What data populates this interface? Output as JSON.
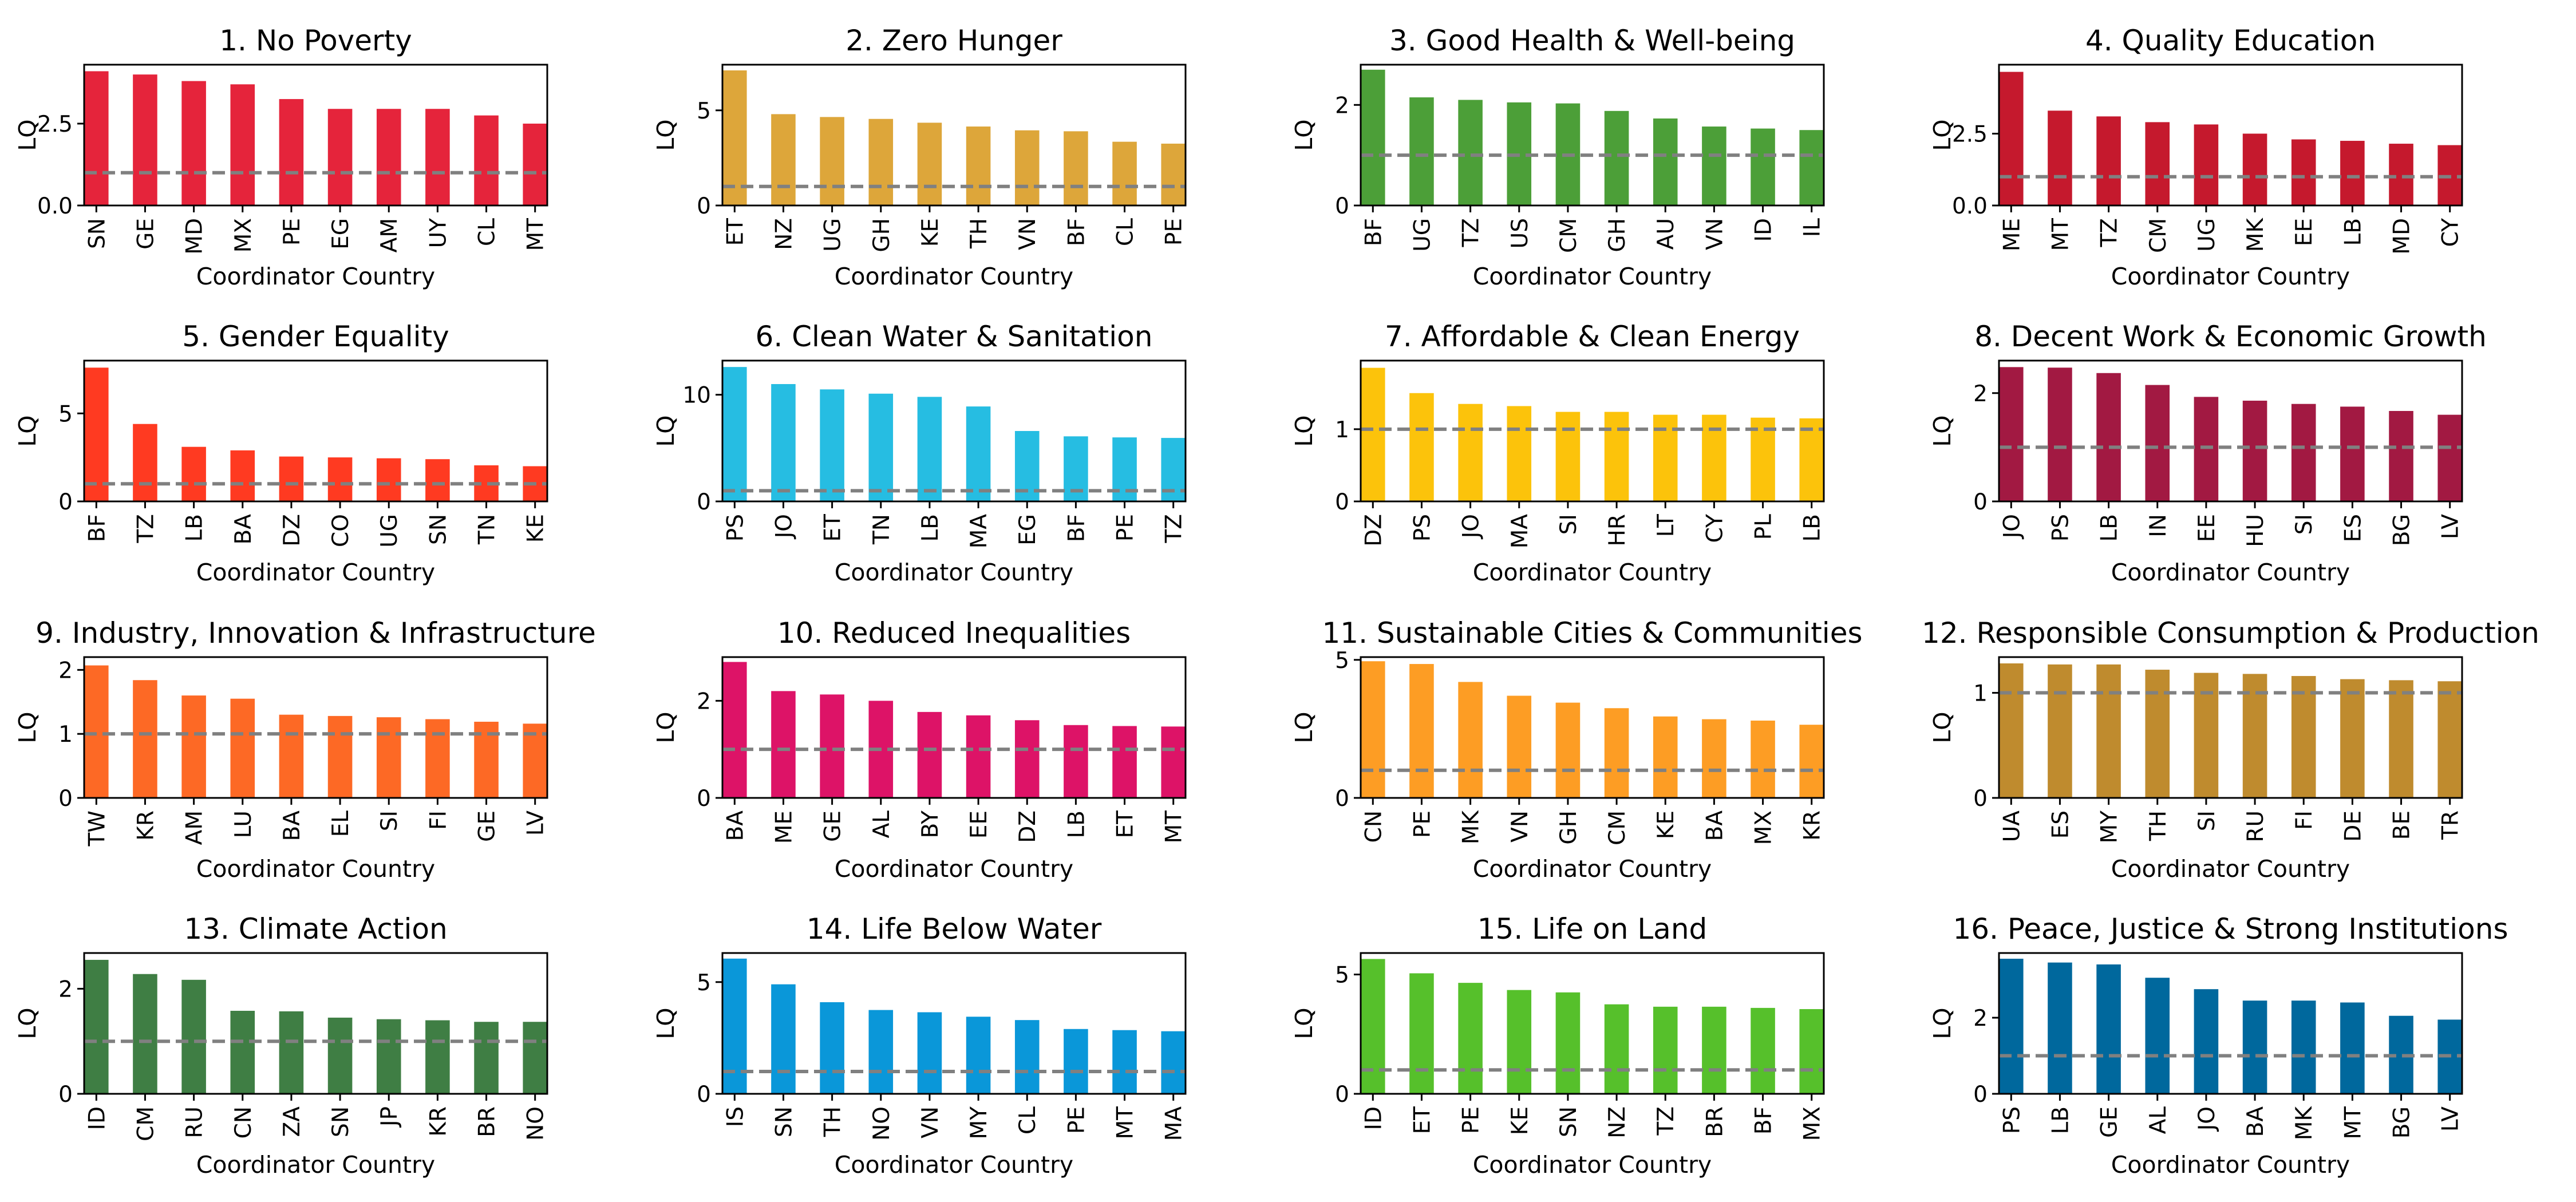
{
  "chart_data": [
    {
      "type": "bar",
      "title": "1. No Poverty",
      "color": "#E5243B",
      "xlabel": "Coordinator Country",
      "ylabel": "LQ",
      "ylim": [
        0,
        4.3
      ],
      "yticks": [
        0,
        2.5
      ],
      "ytick_labels": [
        "0.0",
        "2.5"
      ],
      "reference_line": 1,
      "categories": [
        "SN",
        "GE",
        "MD",
        "MX",
        "PE",
        "EG",
        "AM",
        "UY",
        "CL",
        "MT"
      ],
      "values": [
        4.1,
        4.0,
        3.8,
        3.7,
        3.25,
        2.95,
        2.95,
        2.95,
        2.75,
        2.5
      ]
    },
    {
      "type": "bar",
      "title": "2. Zero Hunger",
      "color": "#DDA63A",
      "xlabel": "Coordinator Country",
      "ylabel": "LQ",
      "ylim": [
        0,
        7.4
      ],
      "yticks": [
        0,
        5
      ],
      "ytick_labels": [
        "0",
        "5"
      ],
      "reference_line": 1,
      "categories": [
        "ET",
        "NZ",
        "UG",
        "GH",
        "KE",
        "TH",
        "VN",
        "BF",
        "CL",
        "PE"
      ],
      "values": [
        7.1,
        4.8,
        4.65,
        4.55,
        4.35,
        4.15,
        3.95,
        3.9,
        3.35,
        3.25
      ]
    },
    {
      "type": "bar",
      "title": "3. Good Health & Well-being",
      "color": "#4C9F38",
      "xlabel": "Coordinator Country",
      "ylabel": "LQ",
      "ylim": [
        0,
        2.8
      ],
      "yticks": [
        0,
        2
      ],
      "ytick_labels": [
        "0",
        "2"
      ],
      "reference_line": 1,
      "categories": [
        "BF",
        "UG",
        "TZ",
        "US",
        "CM",
        "GH",
        "AU",
        "VN",
        "ID",
        "IL"
      ],
      "values": [
        2.7,
        2.15,
        2.1,
        2.05,
        2.03,
        1.88,
        1.73,
        1.57,
        1.53,
        1.5
      ]
    },
    {
      "type": "bar",
      "title": "4. Quality Education",
      "color": "#C5192D",
      "xlabel": "Coordinator Country",
      "ylabel": "LQ",
      "ylim": [
        0,
        4.9
      ],
      "yticks": [
        0,
        2.5
      ],
      "ytick_labels": [
        "0.0",
        "2.5"
      ],
      "reference_line": 1,
      "categories": [
        "ME",
        "MT",
        "TZ",
        "CM",
        "UG",
        "MK",
        "EE",
        "LB",
        "MD",
        "CY"
      ],
      "values": [
        4.65,
        3.3,
        3.1,
        2.9,
        2.82,
        2.5,
        2.3,
        2.25,
        2.15,
        2.1
      ]
    },
    {
      "type": "bar",
      "title": "5. Gender Equality",
      "color": "#FF3A21",
      "xlabel": "Coordinator Country",
      "ylabel": "LQ",
      "ylim": [
        0,
        8
      ],
      "yticks": [
        0,
        5
      ],
      "ytick_labels": [
        "0",
        "5"
      ],
      "reference_line": 1,
      "categories": [
        "BF",
        "TZ",
        "LB",
        "BA",
        "DZ",
        "CO",
        "UG",
        "SN",
        "TN",
        "KE"
      ],
      "values": [
        7.6,
        4.4,
        3.1,
        2.9,
        2.55,
        2.5,
        2.45,
        2.4,
        2.05,
        2.0
      ]
    },
    {
      "type": "bar",
      "title": "6. Clean Water & Sanitation",
      "color": "#26BDE2",
      "xlabel": "Coordinator Country",
      "ylabel": "LQ",
      "ylim": [
        0,
        13.2
      ],
      "yticks": [
        0,
        10
      ],
      "ytick_labels": [
        "0",
        "10"
      ],
      "reference_line": 1,
      "categories": [
        "PS",
        "JO",
        "ET",
        "TN",
        "LB",
        "MA",
        "EG",
        "BF",
        "PE",
        "TZ"
      ],
      "values": [
        12.6,
        11.0,
        10.5,
        10.1,
        9.8,
        8.9,
        6.6,
        6.1,
        6.0,
        5.95
      ]
    },
    {
      "type": "bar",
      "title": "7. Affordable & Clean Energy",
      "color": "#FCC30B",
      "xlabel": "Coordinator Country",
      "ylabel": "LQ",
      "ylim": [
        0,
        1.95
      ],
      "yticks": [
        0,
        1
      ],
      "ytick_labels": [
        "0",
        "1"
      ],
      "reference_line": 1,
      "categories": [
        "DZ",
        "PS",
        "JO",
        "MA",
        "SI",
        "HR",
        "LT",
        "CY",
        "PL",
        "LB"
      ],
      "values": [
        1.85,
        1.5,
        1.35,
        1.32,
        1.24,
        1.24,
        1.2,
        1.2,
        1.16,
        1.15
      ]
    },
    {
      "type": "bar",
      "title": "8. Decent Work & Economic Growth",
      "color": "#A21942",
      "xlabel": "Coordinator Country",
      "ylabel": "LQ",
      "ylim": [
        0,
        2.6
      ],
      "yticks": [
        0,
        2
      ],
      "ytick_labels": [
        "0",
        "2"
      ],
      "reference_line": 1,
      "categories": [
        "JO",
        "PS",
        "LB",
        "IN",
        "EE",
        "HU",
        "SI",
        "ES",
        "BG",
        "LV"
      ],
      "values": [
        2.48,
        2.47,
        2.37,
        2.15,
        1.93,
        1.86,
        1.8,
        1.75,
        1.67,
        1.6
      ]
    },
    {
      "type": "bar",
      "title": "9. Industry, Innovation & Infrastructure",
      "color": "#FD6925",
      "xlabel": "Coordinator Country",
      "ylabel": "LQ",
      "ylim": [
        0,
        2.2
      ],
      "yticks": [
        0,
        1,
        2
      ],
      "ytick_labels": [
        "0",
        "1",
        "2"
      ],
      "reference_line": 1,
      "categories": [
        "TW",
        "KR",
        "AM",
        "LU",
        "BA",
        "EL",
        "SI",
        "FI",
        "GE",
        "LV"
      ],
      "values": [
        2.07,
        1.84,
        1.6,
        1.55,
        1.3,
        1.28,
        1.26,
        1.23,
        1.19,
        1.16
      ]
    },
    {
      "type": "bar",
      "title": "10.  Reduced Inequalities",
      "color": "#DD1367",
      "xlabel": "Coordinator Country",
      "ylabel": "LQ",
      "ylim": [
        0,
        2.9
      ],
      "yticks": [
        0,
        2
      ],
      "ytick_labels": [
        "0",
        "2"
      ],
      "reference_line": 1,
      "categories": [
        "BA",
        "ME",
        "GE",
        "AL",
        "BY",
        "EE",
        "DZ",
        "LB",
        "ET",
        "MT"
      ],
      "values": [
        2.8,
        2.2,
        2.13,
        2.0,
        1.77,
        1.7,
        1.6,
        1.5,
        1.48,
        1.47
      ]
    },
    {
      "type": "bar",
      "title": "11.  Sustainable Cities & Communities",
      "color": "#FD9D24",
      "xlabel": "Coordinator Country",
      "ylabel": "LQ",
      "ylim": [
        0,
        5.1
      ],
      "yticks": [
        0,
        5
      ],
      "ytick_labels": [
        "0",
        "5"
      ],
      "reference_line": 1,
      "categories": [
        "CN",
        "PE",
        "MK",
        "VN",
        "GH",
        "CM",
        "KE",
        "BA",
        "MX",
        "KR"
      ],
      "values": [
        4.95,
        4.85,
        4.2,
        3.7,
        3.45,
        3.25,
        2.95,
        2.85,
        2.8,
        2.65
      ]
    },
    {
      "type": "bar",
      "title": "12.  Responsible Consumption & Production",
      "color": "#BF8B2E",
      "xlabel": "Coordinator Country",
      "ylabel": "LQ",
      "ylim": [
        0,
        1.34
      ],
      "yticks": [
        0,
        1
      ],
      "ytick_labels": [
        "0",
        "1"
      ],
      "reference_line": 1,
      "categories": [
        "UA",
        "ES",
        "MY",
        "TH",
        "SI",
        "RU",
        "FI",
        "DE",
        "BE",
        "TR"
      ],
      "values": [
        1.28,
        1.27,
        1.27,
        1.22,
        1.19,
        1.18,
        1.16,
        1.13,
        1.12,
        1.11
      ]
    },
    {
      "type": "bar",
      "title": "13.  Climate Action",
      "color": "#3F7E44",
      "xlabel": "Coordinator Country",
      "ylabel": "LQ",
      "ylim": [
        0,
        2.68
      ],
      "yticks": [
        0,
        2
      ],
      "ytick_labels": [
        "0",
        "2"
      ],
      "reference_line": 1,
      "categories": [
        "ID",
        "CM",
        "RU",
        "CN",
        "ZA",
        "SN",
        "JP",
        "KR",
        "BR",
        "NO"
      ],
      "values": [
        2.55,
        2.28,
        2.17,
        1.58,
        1.57,
        1.45,
        1.42,
        1.4,
        1.37,
        1.37
      ]
    },
    {
      "type": "bar",
      "title": "14.  Life Below Water",
      "color": "#0A97D9",
      "xlabel": "Coordinator Country",
      "ylabel": "LQ",
      "ylim": [
        0,
        6.3
      ],
      "yticks": [
        0,
        5
      ],
      "ytick_labels": [
        "0",
        "5"
      ],
      "reference_line": 1,
      "categories": [
        "IS",
        "SN",
        "TH",
        "NO",
        "VN",
        "MY",
        "CL",
        "PE",
        "MT",
        "MA"
      ],
      "values": [
        6.05,
        4.9,
        4.1,
        3.75,
        3.65,
        3.45,
        3.3,
        2.9,
        2.85,
        2.8
      ]
    },
    {
      "type": "bar",
      "title": "15.  Life on Land",
      "color": "#56C02B",
      "xlabel": "Coordinator Country",
      "ylabel": "LQ",
      "ylim": [
        0,
        5.9
      ],
      "yticks": [
        0,
        5
      ],
      "ytick_labels": [
        "0",
        "5"
      ],
      "reference_line": 1,
      "categories": [
        "ID",
        "ET",
        "PE",
        "KE",
        "SN",
        "NZ",
        "TZ",
        "BR",
        "BF",
        "MX"
      ],
      "values": [
        5.65,
        5.05,
        4.65,
        4.35,
        4.25,
        3.75,
        3.65,
        3.65,
        3.6,
        3.55
      ]
    },
    {
      "type": "bar",
      "title": "16.  Peace, Justice & Strong Institutions",
      "color": "#00689D",
      "xlabel": "Coordinator Country",
      "ylabel": "LQ",
      "ylim": [
        0,
        3.7
      ],
      "yticks": [
        0,
        2
      ],
      "ytick_labels": [
        "0",
        "2"
      ],
      "reference_line": 1,
      "categories": [
        "PS",
        "LB",
        "GE",
        "AL",
        "JO",
        "BA",
        "MK",
        "MT",
        "BG",
        "LV"
      ],
      "values": [
        3.55,
        3.45,
        3.4,
        3.05,
        2.75,
        2.45,
        2.45,
        2.4,
        2.05,
        1.95
      ]
    }
  ]
}
